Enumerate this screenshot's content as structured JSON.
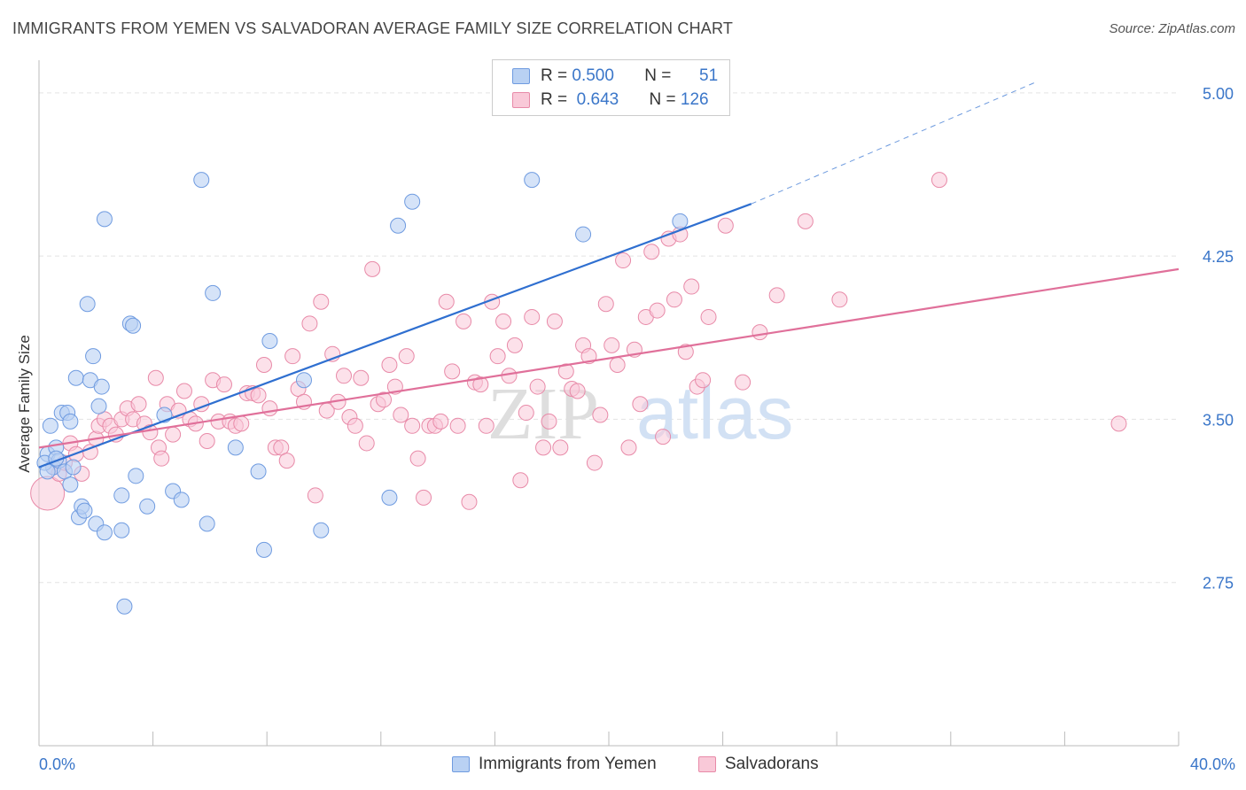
{
  "title": "IMMIGRANTS FROM YEMEN VS SALVADORAN AVERAGE FAMILY SIZE CORRELATION CHART",
  "source": "Source: ZipAtlas.com",
  "watermark": {
    "zip": "ZIP",
    "atlas": "atlas"
  },
  "legend_stats": [
    {
      "r_label": "R =",
      "r_value": "0.500",
      "n_label": "N =",
      "n_value": "51"
    },
    {
      "r_label": "R =",
      "r_value": "0.643",
      "n_label": "N =",
      "n_value": "126"
    }
  ],
  "colors": {
    "blue_fill": "#b9d1f3",
    "blue_stroke": "#6f9be0",
    "blue_line": "#2f6fd0",
    "pink_fill": "#f9c9d8",
    "pink_stroke": "#e88aa8",
    "pink_line": "#e0709a",
    "tick_label": "#3a76c9",
    "grid": "#e3e3e3"
  },
  "chart_data": {
    "type": "scatter",
    "xlabel": "",
    "ylabel": "Average Family Size",
    "xlim": [
      0,
      40
    ],
    "ylim": [
      2.0,
      5.15
    ],
    "x_tick_labels": [
      "0.0%",
      "40.0%"
    ],
    "y_ticks": [
      2.75,
      3.5,
      4.25,
      5.0
    ],
    "y_tick_labels": [
      "2.75",
      "3.50",
      "4.25",
      "5.00"
    ],
    "grid": true,
    "legend_position": "top-center",
    "series": [
      {
        "name": "Immigrants from Yemen",
        "color": "blue",
        "trend": {
          "x": [
            0,
            25
          ],
          "y": [
            3.28,
            4.49
          ],
          "dashed_to": [
            35,
            5.05
          ]
        },
        "points": [
          [
            0.3,
            3.34
          ],
          [
            0.4,
            3.47
          ],
          [
            0.5,
            3.28
          ],
          [
            0.6,
            3.37
          ],
          [
            0.7,
            3.31
          ],
          [
            0.8,
            3.53
          ],
          [
            0.9,
            3.26
          ],
          [
            1.0,
            3.53
          ],
          [
            1.1,
            3.2
          ],
          [
            1.2,
            3.28
          ],
          [
            1.3,
            3.69
          ],
          [
            1.4,
            3.05
          ],
          [
            1.5,
            3.1
          ],
          [
            1.6,
            3.08
          ],
          [
            1.7,
            4.03
          ],
          [
            1.8,
            3.68
          ],
          [
            1.9,
            3.79
          ],
          [
            2.0,
            3.02
          ],
          [
            2.1,
            3.56
          ],
          [
            2.2,
            3.65
          ],
          [
            2.3,
            2.98
          ],
          [
            2.3,
            4.42
          ],
          [
            2.9,
            2.99
          ],
          [
            2.9,
            3.15
          ],
          [
            3.0,
            2.64
          ],
          [
            3.2,
            3.94
          ],
          [
            3.3,
            3.93
          ],
          [
            3.4,
            3.24
          ],
          [
            3.8,
            3.1
          ],
          [
            4.4,
            3.52
          ],
          [
            4.7,
            3.17
          ],
          [
            5.0,
            3.13
          ],
          [
            5.7,
            4.6
          ],
          [
            5.9,
            3.02
          ],
          [
            6.1,
            4.08
          ],
          [
            6.9,
            3.37
          ],
          [
            7.7,
            3.26
          ],
          [
            7.9,
            2.9
          ],
          [
            8.1,
            3.86
          ],
          [
            9.3,
            3.68
          ],
          [
            9.9,
            2.99
          ],
          [
            12.3,
            3.14
          ],
          [
            12.6,
            4.39
          ],
          [
            13.1,
            4.5
          ],
          [
            17.3,
            4.6
          ],
          [
            19.1,
            4.35
          ],
          [
            22.5,
            4.41
          ],
          [
            0.2,
            3.3
          ],
          [
            0.3,
            3.26
          ],
          [
            1.1,
            3.49
          ],
          [
            0.6,
            3.32
          ]
        ]
      },
      {
        "name": "Salvadorans",
        "color": "pink",
        "trend": {
          "x": [
            0,
            40
          ],
          "y": [
            3.37,
            4.19
          ]
        },
        "points": [
          [
            0.3,
            3.16
          ],
          [
            0.5,
            3.28
          ],
          [
            0.7,
            3.25
          ],
          [
            0.9,
            3.3
          ],
          [
            1.1,
            3.39
          ],
          [
            1.3,
            3.34
          ],
          [
            1.5,
            3.25
          ],
          [
            1.8,
            3.35
          ],
          [
            2.0,
            3.41
          ],
          [
            2.1,
            3.47
          ],
          [
            2.3,
            3.5
          ],
          [
            2.5,
            3.47
          ],
          [
            2.7,
            3.43
          ],
          [
            2.9,
            3.5
          ],
          [
            3.1,
            3.55
          ],
          [
            3.3,
            3.5
          ],
          [
            3.5,
            3.57
          ],
          [
            3.7,
            3.48
          ],
          [
            3.9,
            3.44
          ],
          [
            4.1,
            3.69
          ],
          [
            4.2,
            3.37
          ],
          [
            4.3,
            3.32
          ],
          [
            4.5,
            3.57
          ],
          [
            4.7,
            3.43
          ],
          [
            4.9,
            3.54
          ],
          [
            5.1,
            3.63
          ],
          [
            5.3,
            3.5
          ],
          [
            5.5,
            3.48
          ],
          [
            5.7,
            3.57
          ],
          [
            5.9,
            3.4
          ],
          [
            6.1,
            3.68
          ],
          [
            6.3,
            3.49
          ],
          [
            6.5,
            3.66
          ],
          [
            6.7,
            3.49
          ],
          [
            6.9,
            3.47
          ],
          [
            7.1,
            3.48
          ],
          [
            7.3,
            3.62
          ],
          [
            7.5,
            3.62
          ],
          [
            7.7,
            3.61
          ],
          [
            7.9,
            3.75
          ],
          [
            8.1,
            3.55
          ],
          [
            8.3,
            3.37
          ],
          [
            8.5,
            3.37
          ],
          [
            8.7,
            3.31
          ],
          [
            8.9,
            3.79
          ],
          [
            9.1,
            3.64
          ],
          [
            9.3,
            3.58
          ],
          [
            9.5,
            3.94
          ],
          [
            9.7,
            3.15
          ],
          [
            9.9,
            4.04
          ],
          [
            10.1,
            3.54
          ],
          [
            10.3,
            3.8
          ],
          [
            10.5,
            3.58
          ],
          [
            10.7,
            3.7
          ],
          [
            10.9,
            3.51
          ],
          [
            11.1,
            3.47
          ],
          [
            11.3,
            3.69
          ],
          [
            11.5,
            3.39
          ],
          [
            11.7,
            4.19
          ],
          [
            11.9,
            3.57
          ],
          [
            12.1,
            3.59
          ],
          [
            12.3,
            3.75
          ],
          [
            12.5,
            3.65
          ],
          [
            12.7,
            3.52
          ],
          [
            12.9,
            3.79
          ],
          [
            13.1,
            3.47
          ],
          [
            13.3,
            3.32
          ],
          [
            13.5,
            3.14
          ],
          [
            13.7,
            3.47
          ],
          [
            13.9,
            3.47
          ],
          [
            14.1,
            3.49
          ],
          [
            14.3,
            4.04
          ],
          [
            14.5,
            3.72
          ],
          [
            14.7,
            3.47
          ],
          [
            14.9,
            3.95
          ],
          [
            15.1,
            3.12
          ],
          [
            15.3,
            3.67
          ],
          [
            15.5,
            3.66
          ],
          [
            15.7,
            3.47
          ],
          [
            15.9,
            4.04
          ],
          [
            16.1,
            3.79
          ],
          [
            16.3,
            3.95
          ],
          [
            16.5,
            3.7
          ],
          [
            16.7,
            3.84
          ],
          [
            16.9,
            3.22
          ],
          [
            17.1,
            3.53
          ],
          [
            17.3,
            3.97
          ],
          [
            17.5,
            3.65
          ],
          [
            17.7,
            3.37
          ],
          [
            17.9,
            3.49
          ],
          [
            18.1,
            3.95
          ],
          [
            18.3,
            3.37
          ],
          [
            18.5,
            3.72
          ],
          [
            18.7,
            3.64
          ],
          [
            18.9,
            3.63
          ],
          [
            19.1,
            3.84
          ],
          [
            19.3,
            3.79
          ],
          [
            19.5,
            3.3
          ],
          [
            19.7,
            3.52
          ],
          [
            19.9,
            4.03
          ],
          [
            20.1,
            3.84
          ],
          [
            20.3,
            3.75
          ],
          [
            20.5,
            4.23
          ],
          [
            20.7,
            3.37
          ],
          [
            20.9,
            3.82
          ],
          [
            21.1,
            3.57
          ],
          [
            21.3,
            3.97
          ],
          [
            21.5,
            4.27
          ],
          [
            21.7,
            4.0
          ],
          [
            21.9,
            3.42
          ],
          [
            22.1,
            4.33
          ],
          [
            22.3,
            4.05
          ],
          [
            22.5,
            4.35
          ],
          [
            22.7,
            3.81
          ],
          [
            22.9,
            4.11
          ],
          [
            23.1,
            3.65
          ],
          [
            23.3,
            3.68
          ],
          [
            23.5,
            3.97
          ],
          [
            24.1,
            4.39
          ],
          [
            24.7,
            3.67
          ],
          [
            25.3,
            3.9
          ],
          [
            25.9,
            4.07
          ],
          [
            26.9,
            4.41
          ],
          [
            28.1,
            4.05
          ],
          [
            31.6,
            4.6
          ],
          [
            37.9,
            3.48
          ]
        ]
      }
    ]
  },
  "bottom_legend": [
    {
      "label": "Immigrants from Yemen",
      "color": "blue"
    },
    {
      "label": "Salvadorans",
      "color": "pink"
    }
  ]
}
